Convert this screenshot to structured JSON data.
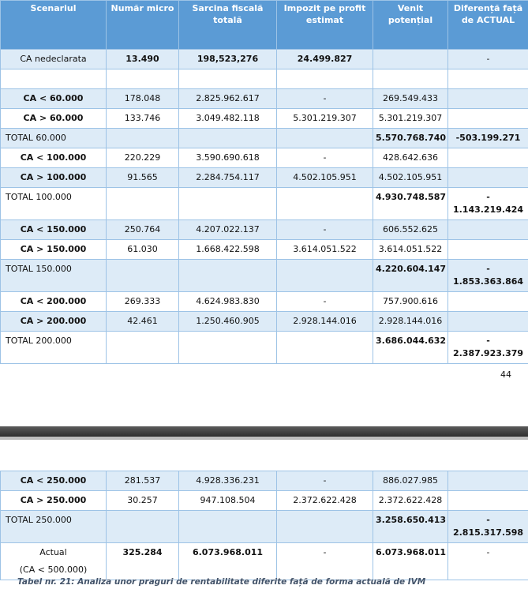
{
  "table": {
    "headers": [
      "Scenariul",
      "Număr micro",
      "Sarcina fiscală totală",
      "Impozit pe profit estimat",
      "Venit potențial",
      "Diferență față de ACTUAL"
    ],
    "rows": [
      [
        "CA nedeclarata",
        "13.490",
        "198,523,276",
        "24.499.827",
        null,
        "-"
      ],
      [
        "CA < 60.000",
        "178.048",
        "2.825.962.617",
        "-",
        "269.549.433",
        null
      ],
      [
        "CA > 60.000",
        "133.746",
        "3.049.482.118",
        "5.301.219.307",
        "5.301.219.307",
        null
      ],
      [
        "TOTAL 60.000",
        null,
        null,
        null,
        "5.570.768.740",
        "-503.199.271"
      ],
      [
        "CA < 100.000",
        "220.229",
        "3.590.690.618",
        "-",
        "428.642.636",
        null
      ],
      [
        "CA > 100.000",
        "91.565",
        "2.284.754.117",
        "4.502.105.951",
        "4.502.105.951",
        null
      ],
      [
        "TOTAL 100.000",
        null,
        null,
        null,
        "4.930.748.587",
        "-\n1.143.219.424"
      ],
      [
        "CA < 150.000",
        "250.764",
        "4.207.022.137",
        "-",
        "606.552.625",
        null
      ],
      [
        "CA > 150.000",
        "61.030",
        "1.668.422.598",
        "3.614.051.522",
        "3.614.051.522",
        null
      ],
      [
        "TOTAL 150.000",
        null,
        null,
        null,
        "4.220.604.147",
        "-\n1.853.363.864"
      ],
      [
        "CA < 200.000",
        "269.333",
        "4.624.983.830",
        "-",
        "757.900.616",
        null
      ],
      [
        "CA > 200.000",
        "42.461",
        "1.250.460.905",
        "2.928.144.016",
        "2.928.144.016",
        null
      ],
      [
        "TOTAL 200.000",
        null,
        null,
        null,
        "3.686.044.632",
        "-\n2.387.923.379"
      ]
    ]
  },
  "page_number": "44",
  "table_continued": {
    "rows": [
      [
        "CA < 250.000",
        "281.537",
        "4.928.336.231",
        "-",
        "886.027.985",
        null
      ],
      [
        "CA > 250.000",
        "30.257",
        "947.108.504",
        "2.372.622.428",
        "2.372.622.428",
        null
      ],
      [
        "TOTAL 250.000",
        null,
        null,
        null,
        "3.258.650.413",
        "-\n2.815.317.598"
      ],
      [
        "Actual\n(CA < 500.000)",
        "325.284",
        "6.073.968.011",
        "-",
        "6.073.968.011",
        "-"
      ]
    ]
  },
  "caption": "Tabel nr. 21: Analiza unor praguri de rentabilitate diferite față de forma actuală de IVM"
}
